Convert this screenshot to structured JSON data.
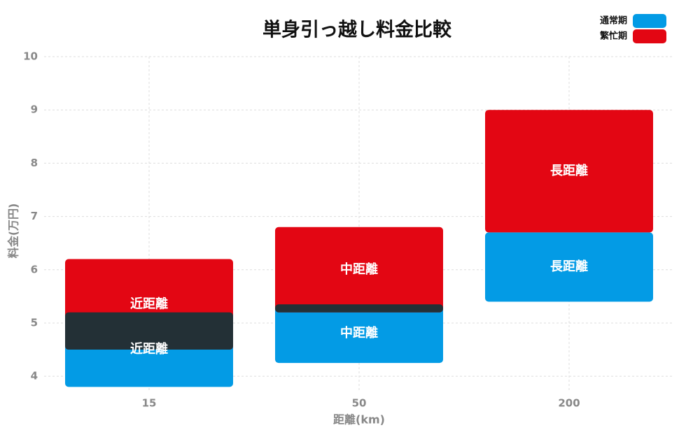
{
  "chart_data": {
    "type": "range-bar",
    "title": "単身引っ越し料金比較",
    "x_label": "距離(km)",
    "y_label": "料金(万円)",
    "categories": [
      "15",
      "50",
      "200"
    ],
    "series": [
      {
        "name": "通常期",
        "color": "#039be5",
        "values": [
          [
            3.8,
            5.2
          ],
          [
            4.25,
            5.35
          ],
          [
            5.4,
            6.7
          ]
        ],
        "labels": [
          "近距離",
          "中距離",
          "長距離"
        ]
      },
      {
        "name": "繁忙期",
        "color": "#e30613",
        "values": [
          [
            4.5,
            6.2
          ],
          [
            5.2,
            6.8
          ],
          [
            6.7,
            9.0
          ]
        ],
        "labels": [
          "近距離",
          "中距離",
          "長距離"
        ]
      }
    ],
    "overlap_color": "#233036",
    "ylim": [
      3.7,
      10
    ],
    "yticks": [
      4,
      5,
      6,
      7,
      8,
      9,
      10
    ],
    "grid": true
  }
}
